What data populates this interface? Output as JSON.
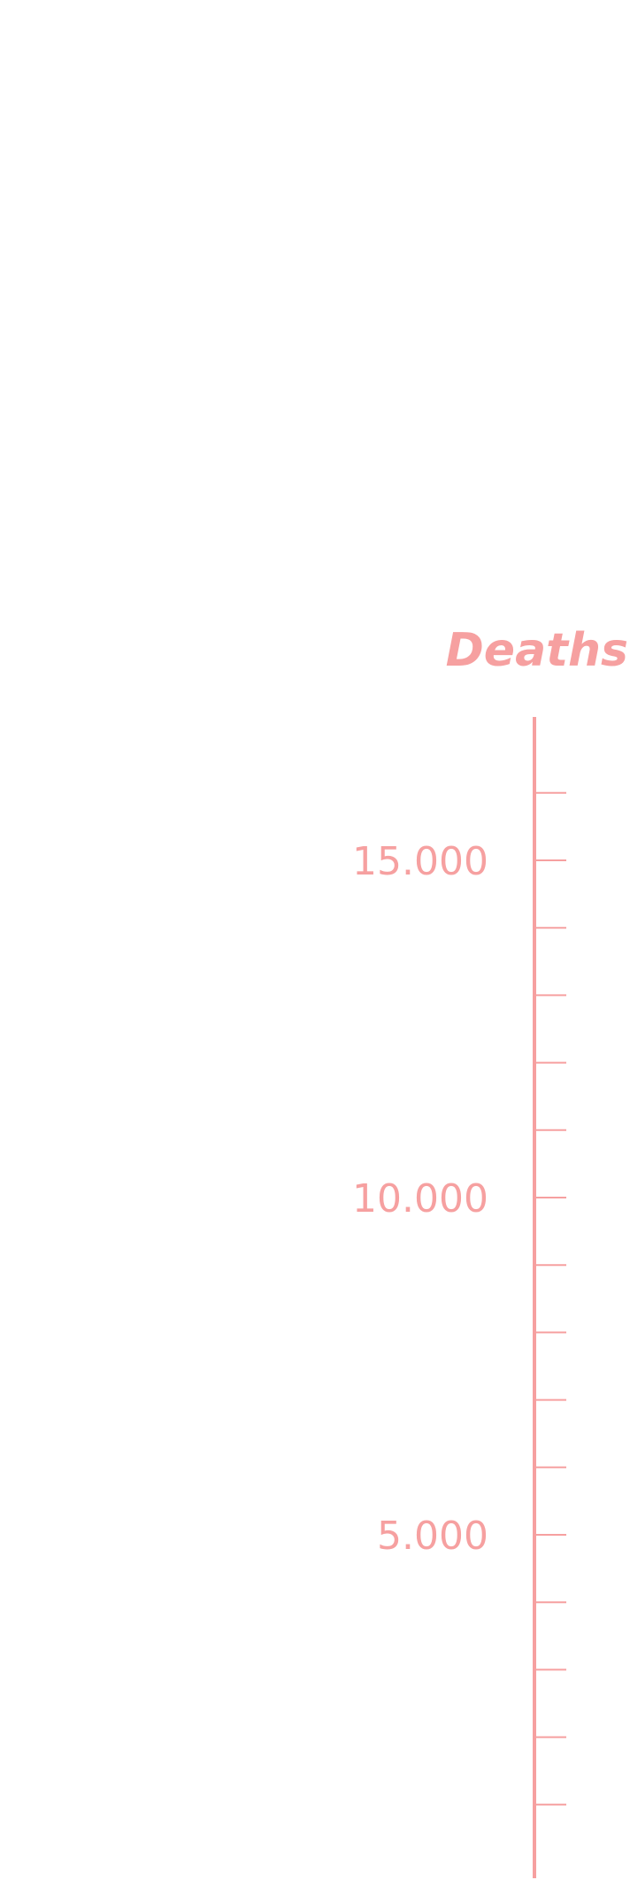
{
  "chart_data": {
    "type": "axis",
    "ylabel": "Deaths",
    "ylim": [
      0,
      16800
    ],
    "major_ticks": [
      {
        "value": 5000,
        "label": "5.000"
      },
      {
        "value": 10000,
        "label": "10.000"
      },
      {
        "value": 15000,
        "label": "15.000"
      }
    ],
    "minor_tick_step": 1000,
    "series": [],
    "grid": false
  },
  "colors": {
    "axis": "#f6a0a0",
    "background": "#ffffff"
  }
}
